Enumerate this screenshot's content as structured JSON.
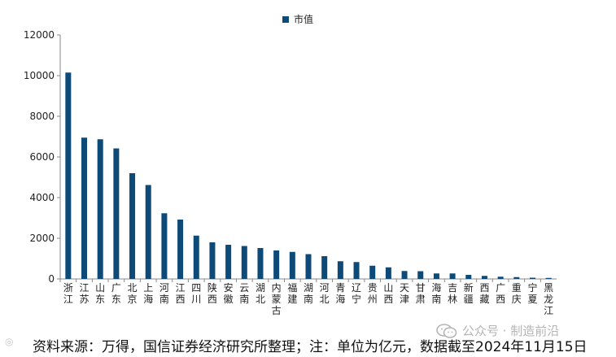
{
  "chart_data": {
    "type": "bar",
    "categories": [
      "浙江",
      "江苏",
      "山东",
      "广东",
      "北京",
      "上海",
      "河南",
      "江西",
      "四川",
      "陕西",
      "安徽",
      "云南",
      "湖北",
      "内蒙古",
      "福建",
      "湖南",
      "河北",
      "青海",
      "辽宁",
      "贵州",
      "山西",
      "天津",
      "甘肃",
      "海南",
      "吉林",
      "新疆",
      "西藏",
      "广西",
      "重庆",
      "宁夏",
      "黑龙江"
    ],
    "series": [
      {
        "name": "市值",
        "color": "#0d4a78",
        "values": [
          10150,
          6950,
          6870,
          6420,
          5200,
          4620,
          3230,
          2920,
          2130,
          1800,
          1680,
          1620,
          1520,
          1400,
          1330,
          1220,
          1120,
          870,
          830,
          650,
          570,
          390,
          380,
          270,
          270,
          200,
          150,
          110,
          90,
          60,
          50
        ]
      }
    ],
    "ylim": [
      0,
      12000
    ],
    "yticks": [
      0,
      2000,
      4000,
      6000,
      8000,
      10000,
      12000
    ],
    "legend_position": "top-center",
    "grid": false
  },
  "source_text": "资料来源：万得，国信证券经济研究所整理；注：单位为亿元，数据截至2024年11月15日",
  "watermark": {
    "text": "公众号 · 制造前沿",
    "left_text": "◎"
  }
}
